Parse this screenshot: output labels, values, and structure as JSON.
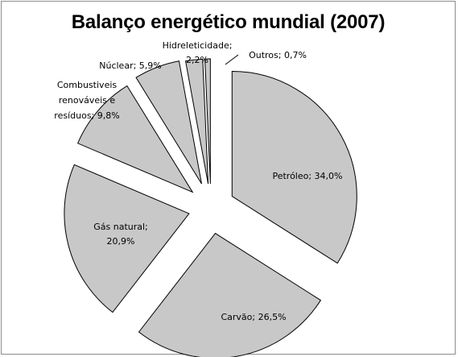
{
  "chart_data": {
    "type": "pie",
    "title": "Balanço energético mundial (2007)",
    "slices": [
      {
        "label": "Petróleo",
        "value": 34.0,
        "text": [
          "Petróleo; 34,0%"
        ]
      },
      {
        "label": "Carvão",
        "value": 26.5,
        "text": [
          "Carvão; 26,5%"
        ]
      },
      {
        "label": "Gás natural",
        "value": 20.9,
        "text": [
          "Gás natural;",
          "20,9%"
        ]
      },
      {
        "label": "Combustíveis renováveis e resíduos",
        "value": 9.8,
        "text": [
          "Combustiveis",
          "renováveis e",
          "resíduos; 9,8%"
        ]
      },
      {
        "label": "Núclear",
        "value": 5.9,
        "text": [
          "Núclear; 5,9%"
        ]
      },
      {
        "label": "Hidreleticidade",
        "value": 2.2,
        "text": [
          "Hidreleticidade;",
          "2,2%"
        ]
      },
      {
        "label": "Outros",
        "value": 0.7,
        "text": [
          "Outros; 0,7%"
        ]
      }
    ],
    "colors": {
      "fill": "#c8c8c8",
      "stroke": "#000000",
      "frame": "#8c8c8c"
    },
    "exploded": true,
    "legend": "none"
  }
}
